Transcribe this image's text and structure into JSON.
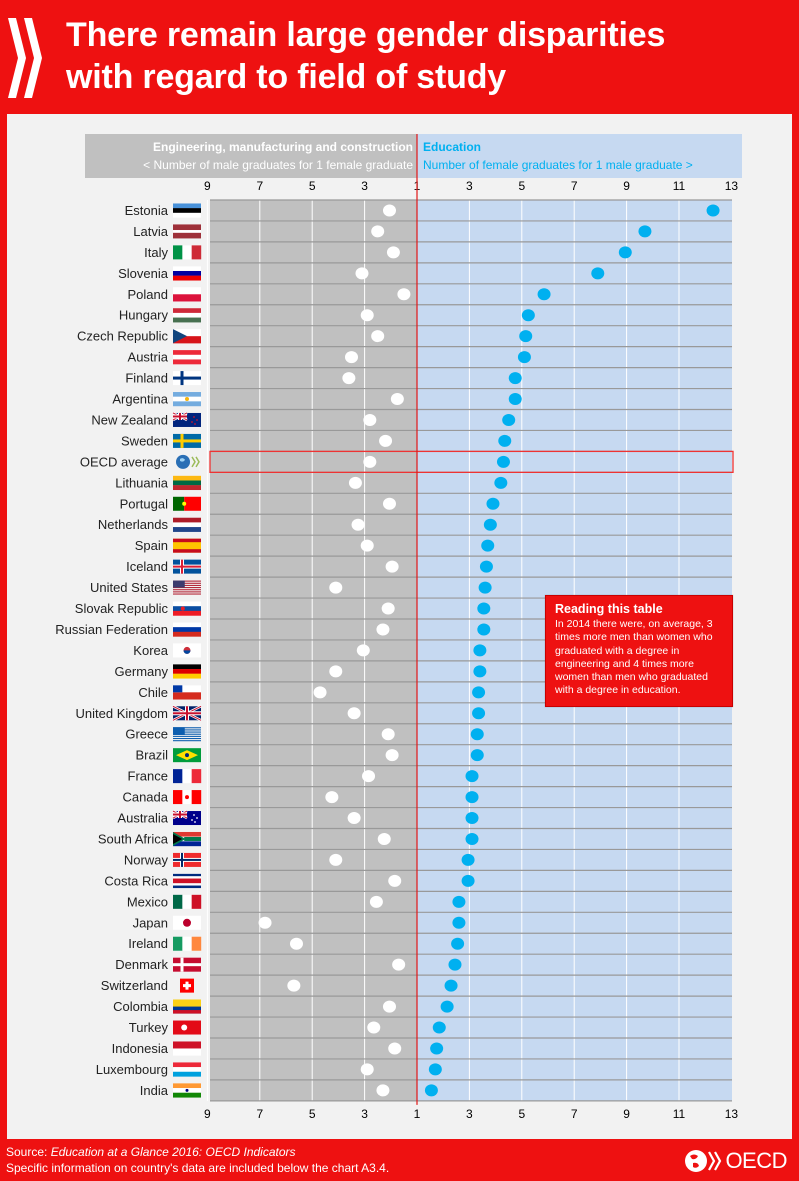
{
  "header": {
    "title_line1": "There remain large gender disparities",
    "title_line2": "with regard to field of study",
    "logo_icon": "oecd-chevrons-icon"
  },
  "legend": {
    "left_title": "Engineering, manufacturing and construction",
    "left_subtitle": "< Number of male graduates for 1 female graduate",
    "right_title": "Education",
    "right_subtitle": "Number of female graduates for 1 male graduate >"
  },
  "callout": {
    "title": "Reading this table",
    "body": "In 2014 there were, on average, 3 times more men than women who graduated with a degree in engineering and 4 times more women than men who graduated with a degree in education."
  },
  "footer": {
    "source_label": "Source:",
    "source_title": "Education at a Glance 2016: OECD Indicators",
    "note": "Specific information on country's data are included below the chart A3.4.",
    "brand": "OECD",
    "brand_icon": "oecd-globe-icon"
  },
  "colors": {
    "brand_red": "#ee1111",
    "engineering_bg": "#c0c0c0",
    "education_bg": "#c6d9f1",
    "education_dot": "#00b0f0",
    "engineering_dot": "#ffffff",
    "education_text": "#00b0f0"
  },
  "chart_data": {
    "type": "scatter",
    "title": "There remain large gender disparities with regard to field of study",
    "highlight": "OECD average",
    "left_axis": {
      "label": "Engineering, manufacturing and construction: number of male graduates for 1 female graduate",
      "ticks": [
        9,
        7,
        5,
        3,
        1
      ],
      "range": [
        9,
        1
      ]
    },
    "right_axis": {
      "label": "Education: number of female graduates for 1 male graduate",
      "ticks": [
        1,
        3,
        5,
        7,
        9,
        11,
        13
      ],
      "range": [
        1,
        13
      ]
    },
    "grid": true,
    "categories": [
      "Estonia",
      "Latvia",
      "Italy",
      "Slovenia",
      "Poland",
      "Hungary",
      "Czech Republic",
      "Austria",
      "Finland",
      "Argentina",
      "New Zealand",
      "Sweden",
      "OECD average",
      "Lithuania",
      "Portugal",
      "Netherlands",
      "Spain",
      "Iceland",
      "United States",
      "Slovak Republic",
      "Russian Federation",
      "Korea",
      "Germany",
      "Chile",
      "United Kingdom",
      "Greece",
      "Brazil",
      "France",
      "Canada",
      "Australia",
      "South Africa",
      "Norway",
      "Costa Rica",
      "Mexico",
      "Japan",
      "Ireland",
      "Denmark",
      "Switzerland",
      "Colombia",
      "Turkey",
      "Indonesia",
      "Luxembourg",
      "India"
    ],
    "flags": [
      "EE",
      "LV",
      "IT",
      "SI",
      "PL",
      "HU",
      "CZ",
      "AT",
      "FI",
      "AR",
      "NZ",
      "SE",
      "OECD",
      "LT",
      "PT",
      "NL",
      "ES",
      "IS",
      "US",
      "SK",
      "RU",
      "KR",
      "DE",
      "CL",
      "GB",
      "GR",
      "BR",
      "FR",
      "CA",
      "AU",
      "ZA",
      "NO",
      "CR",
      "MX",
      "JP",
      "IE",
      "DK",
      "CH",
      "CO",
      "TR",
      "ID",
      "LU",
      "IN"
    ],
    "series": [
      {
        "name": "Engineering, manufacturing and construction",
        "values": [
          2.05,
          2.5,
          1.9,
          3.1,
          1.5,
          2.9,
          2.5,
          3.5,
          3.6,
          1.75,
          2.8,
          2.2,
          2.8,
          3.35,
          2.05,
          3.25,
          2.9,
          1.95,
          4.1,
          2.1,
          2.3,
          3.05,
          4.1,
          4.7,
          3.4,
          2.1,
          1.95,
          2.85,
          4.25,
          3.4,
          2.25,
          4.1,
          1.85,
          2.55,
          6.8,
          5.6,
          1.7,
          5.7,
          2.05,
          2.65,
          1.85,
          2.9,
          2.3
        ]
      },
      {
        "name": "Education",
        "values": [
          12.3,
          9.7,
          8.95,
          7.9,
          5.85,
          5.25,
          5.15,
          5.1,
          4.75,
          4.75,
          4.5,
          4.35,
          4.3,
          4.2,
          3.9,
          3.8,
          3.7,
          3.65,
          3.6,
          3.55,
          3.55,
          3.4,
          3.4,
          3.35,
          3.35,
          3.3,
          3.3,
          3.1,
          3.1,
          3.1,
          3.1,
          2.95,
          2.95,
          2.6,
          2.6,
          2.55,
          2.45,
          2.3,
          2.15,
          1.85,
          1.75,
          1.7,
          1.55
        ]
      }
    ]
  }
}
